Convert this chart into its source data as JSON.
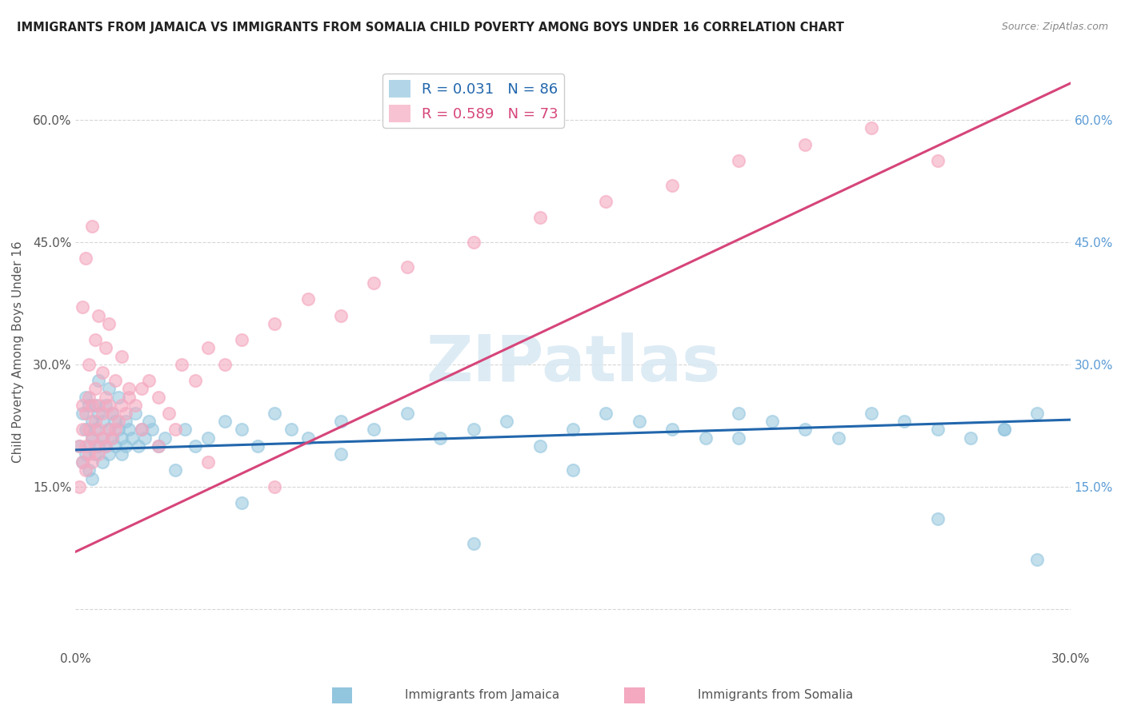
{
  "title": "IMMIGRANTS FROM JAMAICA VS IMMIGRANTS FROM SOMALIA CHILD POVERTY AMONG BOYS UNDER 16 CORRELATION CHART",
  "source": "Source: ZipAtlas.com",
  "ylabel": "Child Poverty Among Boys Under 16",
  "xlim": [
    0.0,
    0.3
  ],
  "ylim": [
    -0.05,
    0.68
  ],
  "jamaica_color": "#92c5de",
  "somalia_color": "#f4a9c0",
  "jamaica_line_color": "#2166ac",
  "somalia_line_color": "#d6457a",
  "jamaica_R": 0.031,
  "jamaica_N": 86,
  "somalia_R": 0.589,
  "somalia_N": 73,
  "watermark": "ZIPatlas",
  "jamaica_line_x0": 0.0,
  "jamaica_line_y0": 0.195,
  "jamaica_line_x1": 0.3,
  "jamaica_line_y1": 0.232,
  "somalia_line_x0": 0.0,
  "somalia_line_y0": 0.07,
  "somalia_line_x1": 0.3,
  "somalia_line_y1": 0.645,
  "jamaica_scatter_x": [
    0.001,
    0.002,
    0.002,
    0.003,
    0.003,
    0.003,
    0.004,
    0.004,
    0.004,
    0.005,
    0.005,
    0.005,
    0.006,
    0.006,
    0.006,
    0.007,
    0.007,
    0.007,
    0.008,
    0.008,
    0.008,
    0.009,
    0.009,
    0.01,
    0.01,
    0.01,
    0.011,
    0.011,
    0.012,
    0.012,
    0.013,
    0.013,
    0.014,
    0.014,
    0.015,
    0.015,
    0.016,
    0.017,
    0.018,
    0.019,
    0.02,
    0.021,
    0.022,
    0.023,
    0.025,
    0.027,
    0.03,
    0.033,
    0.036,
    0.04,
    0.045,
    0.05,
    0.055,
    0.06,
    0.065,
    0.07,
    0.08,
    0.09,
    0.1,
    0.11,
    0.12,
    0.13,
    0.14,
    0.15,
    0.16,
    0.17,
    0.18,
    0.19,
    0.2,
    0.21,
    0.22,
    0.23,
    0.24,
    0.25,
    0.26,
    0.27,
    0.28,
    0.29,
    0.05,
    0.08,
    0.12,
    0.15,
    0.2,
    0.26,
    0.28,
    0.29
  ],
  "jamaica_scatter_y": [
    0.2,
    0.18,
    0.24,
    0.19,
    0.22,
    0.26,
    0.2,
    0.25,
    0.17,
    0.21,
    0.23,
    0.16,
    0.22,
    0.25,
    0.19,
    0.2,
    0.24,
    0.28,
    0.21,
    0.18,
    0.23,
    0.2,
    0.25,
    0.22,
    0.19,
    0.27,
    0.21,
    0.24,
    0.2,
    0.23,
    0.22,
    0.26,
    0.21,
    0.19,
    0.23,
    0.2,
    0.22,
    0.21,
    0.24,
    0.2,
    0.22,
    0.21,
    0.23,
    0.22,
    0.2,
    0.21,
    0.17,
    0.22,
    0.2,
    0.21,
    0.23,
    0.22,
    0.2,
    0.24,
    0.22,
    0.21,
    0.23,
    0.22,
    0.24,
    0.21,
    0.22,
    0.23,
    0.2,
    0.22,
    0.24,
    0.23,
    0.22,
    0.21,
    0.24,
    0.23,
    0.22,
    0.21,
    0.24,
    0.23,
    0.22,
    0.21,
    0.22,
    0.24,
    0.13,
    0.19,
    0.08,
    0.17,
    0.21,
    0.11,
    0.22,
    0.06
  ],
  "somalia_scatter_x": [
    0.001,
    0.001,
    0.002,
    0.002,
    0.002,
    0.003,
    0.003,
    0.003,
    0.004,
    0.004,
    0.004,
    0.005,
    0.005,
    0.005,
    0.006,
    0.006,
    0.006,
    0.007,
    0.007,
    0.007,
    0.008,
    0.008,
    0.009,
    0.009,
    0.01,
    0.01,
    0.011,
    0.011,
    0.012,
    0.013,
    0.014,
    0.015,
    0.016,
    0.018,
    0.02,
    0.022,
    0.025,
    0.028,
    0.032,
    0.036,
    0.04,
    0.045,
    0.05,
    0.06,
    0.07,
    0.08,
    0.09,
    0.1,
    0.12,
    0.14,
    0.16,
    0.18,
    0.2,
    0.22,
    0.24,
    0.26,
    0.002,
    0.003,
    0.004,
    0.005,
    0.006,
    0.007,
    0.008,
    0.009,
    0.01,
    0.012,
    0.014,
    0.016,
    0.02,
    0.025,
    0.03,
    0.04,
    0.06
  ],
  "somalia_scatter_y": [
    0.2,
    0.15,
    0.22,
    0.18,
    0.25,
    0.2,
    0.24,
    0.17,
    0.22,
    0.19,
    0.26,
    0.21,
    0.25,
    0.18,
    0.23,
    0.2,
    0.27,
    0.22,
    0.19,
    0.25,
    0.21,
    0.24,
    0.2,
    0.26,
    0.22,
    0.25,
    0.21,
    0.24,
    0.22,
    0.23,
    0.25,
    0.24,
    0.26,
    0.25,
    0.27,
    0.28,
    0.26,
    0.24,
    0.3,
    0.28,
    0.32,
    0.3,
    0.33,
    0.35,
    0.38,
    0.36,
    0.4,
    0.42,
    0.45,
    0.48,
    0.5,
    0.52,
    0.55,
    0.57,
    0.59,
    0.55,
    0.37,
    0.43,
    0.3,
    0.47,
    0.33,
    0.36,
    0.29,
    0.32,
    0.35,
    0.28,
    0.31,
    0.27,
    0.22,
    0.2,
    0.22,
    0.18,
    0.15
  ]
}
